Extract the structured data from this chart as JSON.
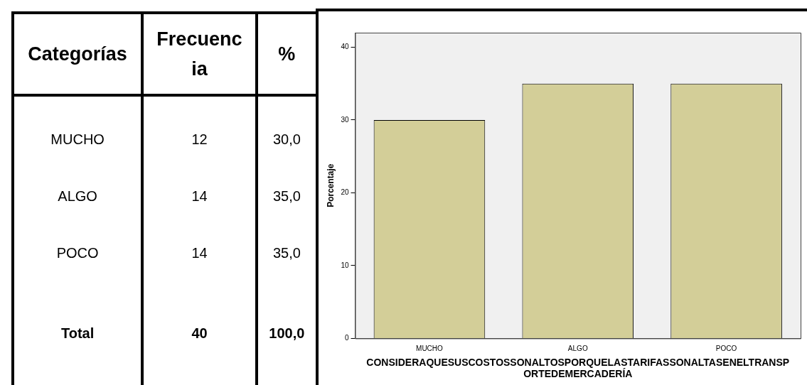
{
  "chart_data": [
    {
      "type": "other",
      "categories": [
        "Categorías",
        "Frecuencia",
        "%"
      ],
      "y_categories": [
        "MUCHO",
        "ALGO",
        "POCO",
        "Total"
      ],
      "cell_labels": [
        [
          "12",
          "30,0"
        ],
        [
          "14",
          "35,0"
        ],
        [
          "14",
          "35,0"
        ],
        [
          "40",
          "100,0"
        ]
      ]
    },
    {
      "type": "bar",
      "categories": [
        "MUCHO",
        "ALGO",
        "POCO"
      ],
      "values": [
        30,
        35,
        35
      ],
      "color": "#d3ce98",
      "ylabel": "Porcentaje",
      "xlabel": "CONSIDERAQUESUSCOSTOSSONALTOSPORQUELASTARIFASSONALTASENELTRANSPORTEDEMERCADERÍA",
      "ylim": [
        0,
        42
      ],
      "yticks": [
        0,
        10,
        20,
        30,
        40
      ],
      "grid": false,
      "legend": false
    }
  ]
}
